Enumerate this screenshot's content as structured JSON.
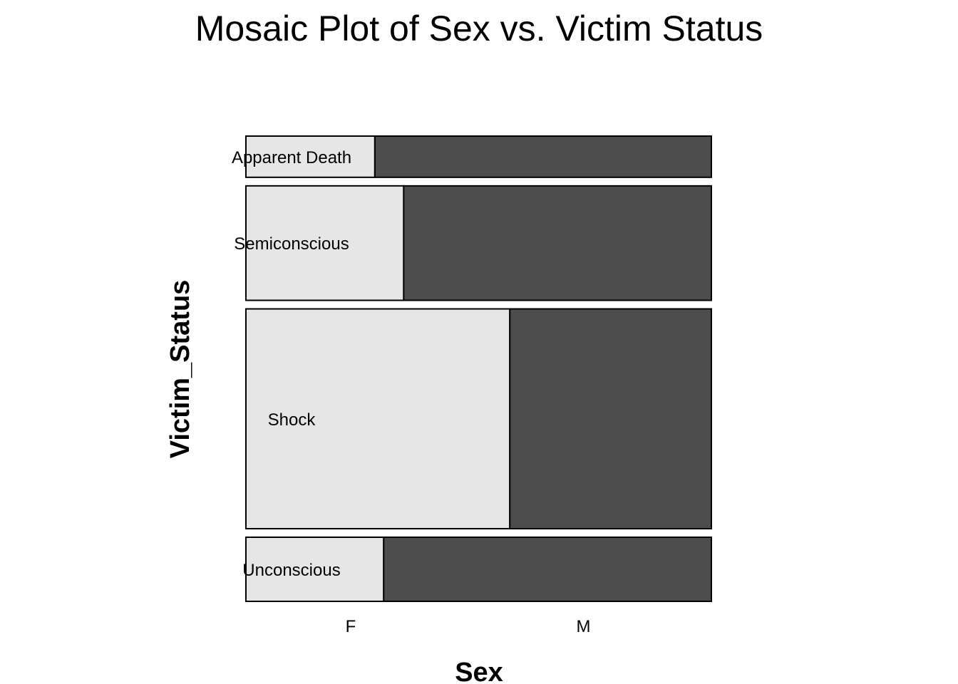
{
  "chart_data": {
    "type": "mosaic",
    "title": "Mosaic Plot of Sex vs. Victim Status",
    "xlabel": "Sex",
    "ylabel": "Victim_Status",
    "x_categories": [
      "F",
      "M"
    ],
    "y_categories": [
      "Apparent Death",
      "Semiconscious",
      "Shock",
      "Unconscious"
    ],
    "row_proportions": [
      0.09,
      0.25,
      0.48,
      0.14
    ],
    "female_share": [
      0.277,
      0.339,
      0.567,
      0.296
    ],
    "colors": {
      "F": "#e6e6e6",
      "M": "#4d4d4d",
      "border": "#000000"
    }
  }
}
